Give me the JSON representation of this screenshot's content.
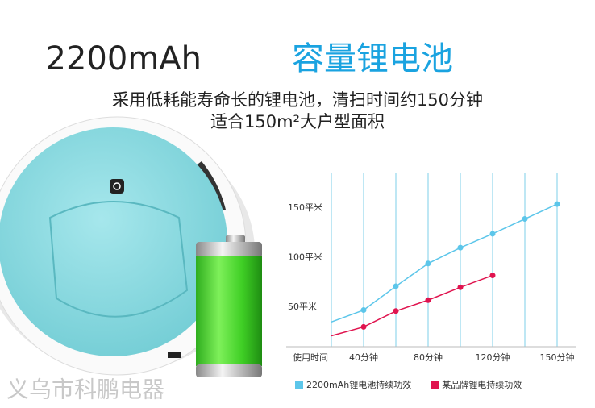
{
  "header": {
    "title_number": "2200mAh",
    "title_text": "容量锂电池",
    "subtitle_lines": [
      "采用低耗能寿命长的锂电池，清扫时间约150分钟",
      "适合150m²大户型面积"
    ]
  },
  "watermark": "义乌市科鹏电器",
  "chart_data": {
    "type": "line",
    "x_label": "使用时间",
    "categories": [
      null,
      "40分钟",
      null,
      "80分钟",
      null,
      "120分钟",
      null,
      "150分钟"
    ],
    "series": [
      {
        "name": "2200mAh锂电池持续功效",
        "color": "#5cc6ea",
        "values": [
          35,
          47,
          71,
          94,
          110,
          124,
          139,
          154
        ]
      },
      {
        "name": "某品牌锂电持续功效",
        "color": "#e0144f",
        "values": [
          21,
          30,
          46,
          57,
          70,
          82,
          null,
          null
        ]
      }
    ],
    "ylim": [
      10,
      185
    ],
    "yticks": [
      {
        "value": 50,
        "label": "50平米"
      },
      {
        "value": 100,
        "label": "100平米"
      },
      {
        "value": 150,
        "label": "150平米"
      }
    ],
    "grid": true,
    "grid_color": "#a9dff0",
    "legend": "bottom"
  }
}
